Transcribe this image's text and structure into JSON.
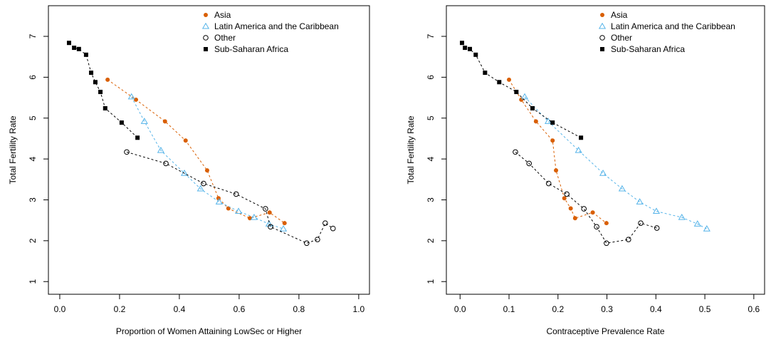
{
  "chart_data": [
    {
      "type": "scatter",
      "x_label": "Proportion of Women Attaining LowSec or Higher",
      "y_label": "Total Fertility Rate",
      "xlim": [
        -0.038,
        1.036
      ],
      "ylim": [
        0.69,
        7.75
      ],
      "xticks": [
        {
          "value": 0,
          "label": "0.0"
        },
        0.2,
        0.4,
        0.6,
        0.8,
        {
          "value": 1,
          "label": "1.0"
        }
      ],
      "yticks": [
        1,
        2,
        3,
        4,
        5,
        6,
        7
      ],
      "legend": "top-right",
      "line_style": "dashed",
      "series": [
        {
          "name": "Asia",
          "color": "#d95f02",
          "marker": "filled-circle",
          "x": [
            0.16,
            0.255,
            0.352,
            0.421,
            0.493,
            0.531,
            0.564,
            0.636,
            0.702,
            0.752
          ],
          "values": [
            5.94,
            5.45,
            4.92,
            4.45,
            3.72,
            3.04,
            2.79,
            2.55,
            2.69,
            2.43
          ]
        },
        {
          "name": "Latin America and the Caribbean",
          "color": "#56b4e9",
          "marker": "open-triangle",
          "x": [
            0.24,
            0.283,
            0.338,
            0.417,
            0.471,
            0.533,
            0.598,
            0.65,
            0.7,
            0.748
          ],
          "values": [
            5.52,
            4.92,
            4.21,
            3.65,
            3.27,
            2.95,
            2.72,
            2.57,
            2.41,
            2.29
          ]
        },
        {
          "name": "Other",
          "color": "#000000",
          "marker": "open-circle",
          "x": [
            0.224,
            0.355,
            0.481,
            0.59,
            0.688,
            0.705,
            0.826,
            0.862,
            0.888,
            0.914
          ],
          "values": [
            4.17,
            3.89,
            3.4,
            3.14,
            2.78,
            2.34,
            1.94,
            2.03,
            2.43,
            2.3
          ]
        },
        {
          "name": "Sub-Saharan Africa",
          "color": "#000000",
          "marker": "filled-square",
          "x": [
            0.031,
            0.048,
            0.064,
            0.088,
            0.105,
            0.119,
            0.136,
            0.152,
            0.207,
            0.26
          ],
          "values": [
            6.84,
            6.72,
            6.69,
            6.55,
            6.11,
            5.88,
            5.64,
            5.24,
            4.89,
            4.52
          ]
        }
      ]
    },
    {
      "type": "scatter",
      "x_label": "Contraceptive Prevalence Rate",
      "y_label": "Total Fertility Rate",
      "xlim": [
        -0.028,
        0.622
      ],
      "ylim": [
        0.69,
        7.75
      ],
      "xticks": [
        {
          "value": 0,
          "label": "0.0"
        },
        0.1,
        0.2,
        0.3,
        0.4,
        0.5,
        0.6
      ],
      "yticks": [
        1,
        2,
        3,
        4,
        5,
        6,
        7
      ],
      "legend": "top-right",
      "line_style": "dashed",
      "series": [
        {
          "name": "Asia",
          "color": "#d95f02",
          "marker": "filled-circle",
          "x": [
            0.1,
            0.125,
            0.155,
            0.189,
            0.196,
            0.213,
            0.226,
            0.235,
            0.271,
            0.299
          ],
          "values": [
            5.94,
            5.45,
            4.92,
            4.45,
            3.72,
            3.04,
            2.79,
            2.55,
            2.69,
            2.43
          ]
        },
        {
          "name": "Latin America and the Caribbean",
          "color": "#56b4e9",
          "marker": "open-triangle",
          "x": [
            0.132,
            0.18,
            0.242,
            0.292,
            0.331,
            0.367,
            0.401,
            0.453,
            0.485,
            0.504
          ],
          "values": [
            5.52,
            4.92,
            4.21,
            3.65,
            3.27,
            2.95,
            2.72,
            2.57,
            2.41,
            2.29
          ]
        },
        {
          "name": "Other",
          "color": "#000000",
          "marker": "open-circle",
          "x": [
            0.113,
            0.141,
            0.181,
            0.218,
            0.253,
            0.279,
            0.299,
            0.344,
            0.369,
            0.402
          ],
          "values": [
            4.17,
            3.89,
            3.4,
            3.14,
            2.78,
            2.34,
            1.94,
            2.03,
            2.43,
            2.31
          ]
        },
        {
          "name": "Sub-Saharan Africa",
          "color": "#000000",
          "marker": "filled-square",
          "x": [
            0.004,
            0.01,
            0.02,
            0.032,
            0.051,
            0.08,
            0.115,
            0.148,
            0.189,
            0.247
          ],
          "values": [
            6.84,
            6.72,
            6.69,
            6.55,
            6.11,
            5.88,
            5.64,
            5.24,
            4.89,
            4.52
          ]
        }
      ]
    }
  ]
}
